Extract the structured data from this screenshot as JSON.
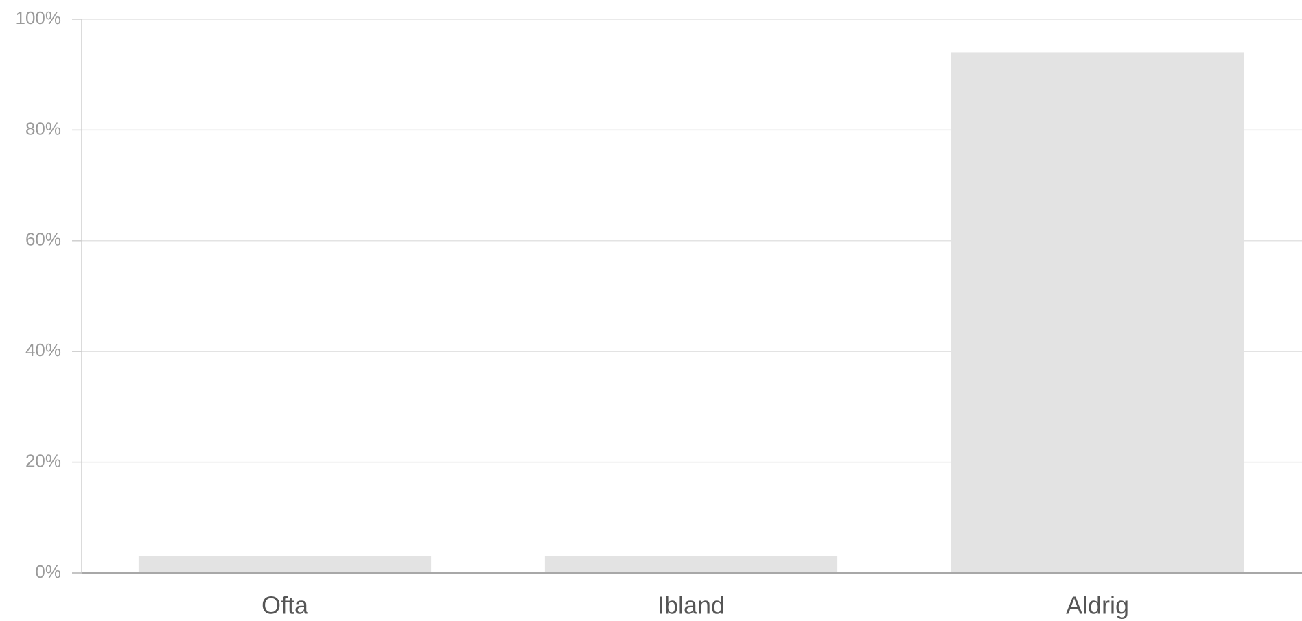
{
  "chart_data": {
    "type": "bar",
    "categories": [
      "Ofta",
      "Ibland",
      "Aldrig"
    ],
    "values": [
      3,
      3,
      94
    ],
    "ylim": [
      0,
      100
    ],
    "yticks": [
      0,
      20,
      40,
      60,
      80,
      100
    ],
    "ytick_labels": [
      "0%",
      "20%",
      "40%",
      "60%",
      "80%",
      "100%"
    ],
    "title": "",
    "xlabel": "",
    "ylabel": "",
    "grid": true,
    "legend": "none",
    "bar_color": "#e3e3e3",
    "grid_color": "#e3e3e3"
  }
}
